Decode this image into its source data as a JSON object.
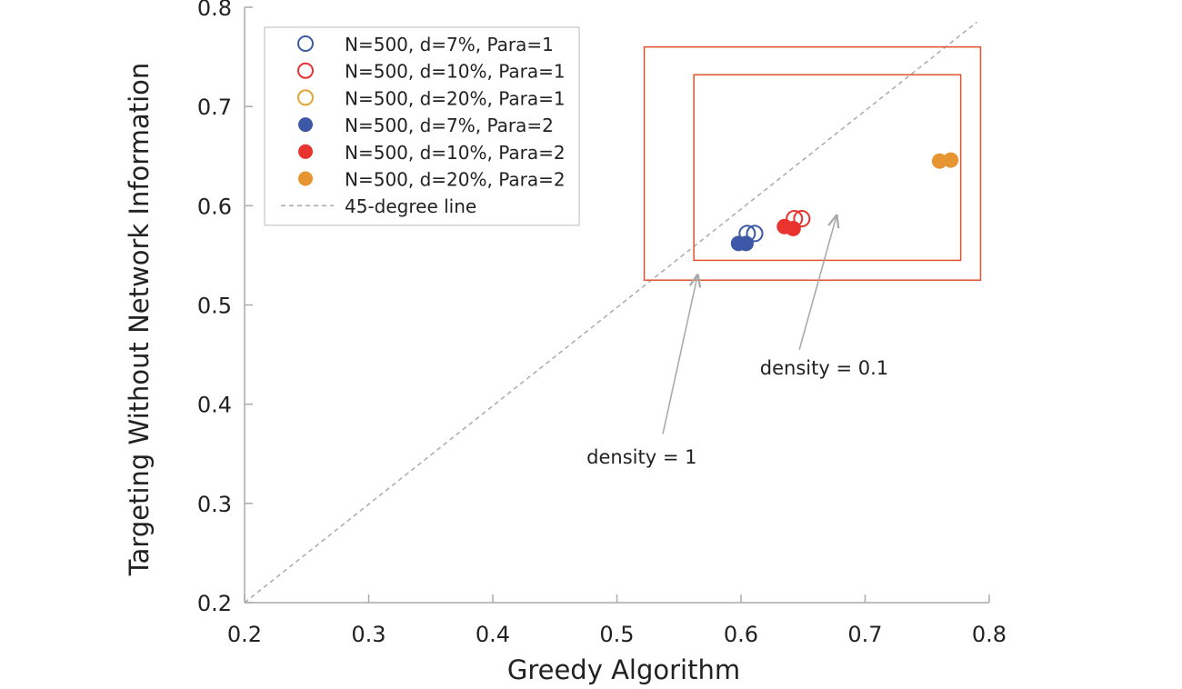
{
  "chart_data": {
    "type": "scatter",
    "xlabel": "Greedy Algorithm",
    "ylabel": "Targeting Without Network Information",
    "xlim": [
      0.2,
      0.8
    ],
    "ylim": [
      0.2,
      0.8
    ],
    "xticks": [
      "0.2",
      "0.3",
      "0.4",
      "0.5",
      "0.6",
      "0.7",
      "0.8"
    ],
    "yticks": [
      "0.2",
      "0.3",
      "0.4",
      "0.5",
      "0.6",
      "0.7",
      "0.8"
    ],
    "grid": false,
    "legend_position": "top-left",
    "series": [
      {
        "name": "N=500, d=7%, Para=1",
        "marker": "open",
        "color": "#3e58a8",
        "points": [
          [
            0.605,
            0.572
          ],
          [
            0.611,
            0.572
          ]
        ]
      },
      {
        "name": "N=500, d=10%, Para=1",
        "marker": "open",
        "color": "#e8332f",
        "points": [
          [
            0.643,
            0.587
          ],
          [
            0.649,
            0.587
          ]
        ]
      },
      {
        "name": "N=500, d=20%, Para=1",
        "marker": "open",
        "color": "#e1a534",
        "points": []
      },
      {
        "name": "N=500, d=7%, Para=2",
        "marker": "filled",
        "color": "#3e58a8",
        "points": [
          [
            0.598,
            0.562
          ],
          [
            0.604,
            0.562
          ]
        ]
      },
      {
        "name": "N=500, d=10%, Para=2",
        "marker": "filled",
        "color": "#e8332f",
        "points": [
          [
            0.635,
            0.579
          ],
          [
            0.642,
            0.577
          ]
        ]
      },
      {
        "name": "N=500, d=20%, Para=2",
        "marker": "filled",
        "color": "#e79530",
        "points": [
          [
            0.76,
            0.645
          ],
          [
            0.769,
            0.646
          ]
        ]
      }
    ],
    "reference_line": {
      "name": "45-degree line",
      "from": [
        0.2,
        0.2
      ],
      "to": [
        0.79,
        0.785
      ],
      "color": "#aaaaaa"
    },
    "regions": [
      {
        "label": "density = 1",
        "x": [
          0.522,
          0.793
        ],
        "y": [
          0.525,
          0.76
        ],
        "color": "#e2512f",
        "label_at": [
          0.52,
          0.34
        ],
        "arrow_from": [
          0.537,
          0.37
        ],
        "arrow_to": [
          0.565,
          0.53
        ]
      },
      {
        "label": "density = 0.1",
        "x": [
          0.562,
          0.777
        ],
        "y": [
          0.545,
          0.732
        ],
        "color": "#e2512f",
        "label_at": [
          0.667,
          0.43
        ],
        "arrow_from": [
          0.647,
          0.455
        ],
        "arrow_to": [
          0.677,
          0.59
        ]
      }
    ]
  }
}
